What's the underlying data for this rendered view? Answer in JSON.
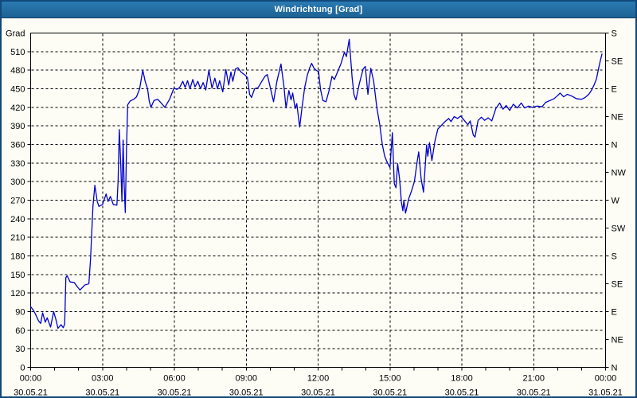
{
  "window": {
    "title": "Windrichtung [Grad]"
  },
  "colors": {
    "titlebar": "#1d6294",
    "window_border": "#10497a",
    "background": "#fdfdf6",
    "plot_background": "#fdfdf6",
    "line": "#0000cc",
    "grid": "#000000",
    "frame": "#000000",
    "text": "#000000"
  },
  "chart_data": {
    "type": "line",
    "title": "Windrichtung [Grad]",
    "ylabel": "Grad",
    "ylim": [
      0,
      540
    ],
    "xlim_hours": [
      0,
      24
    ],
    "grid": {
      "style": "dashed",
      "h_step": 30,
      "v_step_hours": 3
    },
    "y_axis_left": {
      "title": "Grad",
      "tick_step": 30,
      "label_min": 0,
      "label_max": 510
    },
    "y_axis_right": {
      "tick_step": 45,
      "labels": [
        "N",
        "NE",
        "E",
        "SE",
        "S",
        "SW",
        "W",
        "NW",
        "N",
        "NE",
        "E",
        "SE",
        "S"
      ]
    },
    "x_axis": {
      "minor_tick_step_hours": 1,
      "labels": [
        {
          "t": 0,
          "time": "00:00",
          "date": "30.05.21"
        },
        {
          "t": 3,
          "time": "03:00",
          "date": "30.05.21"
        },
        {
          "t": 6,
          "time": "06:00",
          "date": "30.05.21"
        },
        {
          "t": 9,
          "time": "09:00",
          "date": "30.05.21"
        },
        {
          "t": 12,
          "time": "12:00",
          "date": "30.05.21"
        },
        {
          "t": 15,
          "time": "15:00",
          "date": "30.05.21"
        },
        {
          "t": 18,
          "time": "18:00",
          "date": "30.05.21"
        },
        {
          "t": 21,
          "time": "21:00",
          "date": "30.05.21"
        },
        {
          "t": 24,
          "time": "00:00",
          "date": "31.05.21"
        }
      ]
    },
    "series": [
      {
        "name": "Windrichtung",
        "color": "#0000cc",
        "points": [
          [
            0,
            98
          ],
          [
            0.1,
            93
          ],
          [
            0.2,
            86
          ],
          [
            0.33,
            75
          ],
          [
            0.42,
            71
          ],
          [
            0.5,
            88
          ],
          [
            0.61,
            73
          ],
          [
            0.69,
            80
          ],
          [
            0.83,
            65
          ],
          [
            0.96,
            90
          ],
          [
            1.05,
            78
          ],
          [
            1.14,
            63
          ],
          [
            1.27,
            69
          ],
          [
            1.36,
            64
          ],
          [
            1.42,
            70
          ],
          [
            1.47,
            145
          ],
          [
            1.52,
            148
          ],
          [
            1.65,
            138
          ],
          [
            1.82,
            137
          ],
          [
            1.95,
            130
          ],
          [
            2.06,
            125
          ],
          [
            2.26,
            133
          ],
          [
            2.43,
            135
          ],
          [
            2.5,
            175
          ],
          [
            2.6,
            260
          ],
          [
            2.68,
            294
          ],
          [
            2.78,
            268
          ],
          [
            2.85,
            260
          ],
          [
            3.0,
            263
          ],
          [
            3.08,
            272
          ],
          [
            3.15,
            280
          ],
          [
            3.23,
            268
          ],
          [
            3.33,
            276
          ],
          [
            3.45,
            263
          ],
          [
            3.6,
            262
          ],
          [
            3.65,
            300
          ],
          [
            3.7,
            384
          ],
          [
            3.76,
            330
          ],
          [
            3.81,
            268
          ],
          [
            3.86,
            367
          ],
          [
            3.9,
            300
          ],
          [
            3.95,
            250
          ],
          [
            4.0,
            350
          ],
          [
            4.05,
            424
          ],
          [
            4.15,
            430
          ],
          [
            4.3,
            433
          ],
          [
            4.42,
            437
          ],
          [
            4.55,
            450
          ],
          [
            4.68,
            480
          ],
          [
            4.78,
            462
          ],
          [
            4.88,
            450
          ],
          [
            4.95,
            430
          ],
          [
            5.02,
            420
          ],
          [
            5.15,
            431
          ],
          [
            5.3,
            433
          ],
          [
            5.45,
            427
          ],
          [
            5.6,
            420
          ],
          [
            5.8,
            433
          ],
          [
            5.98,
            451
          ],
          [
            6.1,
            449
          ],
          [
            6.22,
            452
          ],
          [
            6.35,
            462
          ],
          [
            6.45,
            452
          ],
          [
            6.55,
            463
          ],
          [
            6.65,
            450
          ],
          [
            6.77,
            465
          ],
          [
            6.86,
            453
          ],
          [
            6.98,
            462
          ],
          [
            7.09,
            450
          ],
          [
            7.2,
            460
          ],
          [
            7.31,
            448
          ],
          [
            7.44,
            480
          ],
          [
            7.57,
            451
          ],
          [
            7.69,
            467
          ],
          [
            7.8,
            450
          ],
          [
            7.89,
            463
          ],
          [
            8.02,
            445
          ],
          [
            8.15,
            481
          ],
          [
            8.27,
            456
          ],
          [
            8.36,
            477
          ],
          [
            8.44,
            462
          ],
          [
            8.55,
            482
          ],
          [
            8.65,
            484
          ],
          [
            8.78,
            477
          ],
          [
            8.95,
            472
          ],
          [
            9.05,
            468
          ],
          [
            9.14,
            441
          ],
          [
            9.22,
            436
          ],
          [
            9.35,
            450
          ],
          [
            9.5,
            452
          ],
          [
            9.65,
            462
          ],
          [
            9.78,
            470
          ],
          [
            9.88,
            473
          ],
          [
            10.05,
            444
          ],
          [
            10.14,
            429
          ],
          [
            10.28,
            462
          ],
          [
            10.45,
            490
          ],
          [
            10.57,
            455
          ],
          [
            10.66,
            419
          ],
          [
            10.78,
            447
          ],
          [
            10.87,
            432
          ],
          [
            10.94,
            443
          ],
          [
            11.04,
            418
          ],
          [
            11.11,
            426
          ],
          [
            11.23,
            388
          ],
          [
            11.33,
            420
          ],
          [
            11.44,
            452
          ],
          [
            11.55,
            472
          ],
          [
            11.65,
            484
          ],
          [
            11.73,
            491
          ],
          [
            11.83,
            483
          ],
          [
            11.95,
            479
          ],
          [
            12.02,
            478
          ],
          [
            12.1,
            449
          ],
          [
            12.2,
            431
          ],
          [
            12.33,
            429
          ],
          [
            12.45,
            446
          ],
          [
            12.58,
            470
          ],
          [
            12.68,
            465
          ],
          [
            12.82,
            478
          ],
          [
            12.95,
            490
          ],
          [
            13.1,
            509
          ],
          [
            13.18,
            502
          ],
          [
            13.3,
            530
          ],
          [
            13.42,
            468
          ],
          [
            13.5,
            440
          ],
          [
            13.58,
            432
          ],
          [
            13.72,
            458
          ],
          [
            13.88,
            482
          ],
          [
            13.97,
            486
          ],
          [
            14.08,
            441
          ],
          [
            14.2,
            483
          ],
          [
            14.32,
            462
          ],
          [
            14.45,
            420
          ],
          [
            14.57,
            393
          ],
          [
            14.68,
            360
          ],
          [
            14.78,
            341
          ],
          [
            14.9,
            330
          ],
          [
            15.0,
            323
          ],
          [
            15.1,
            379
          ],
          [
            15.18,
            297
          ],
          [
            15.25,
            290
          ],
          [
            15.32,
            329
          ],
          [
            15.4,
            305
          ],
          [
            15.48,
            266
          ],
          [
            15.54,
            253
          ],
          [
            15.58,
            270
          ],
          [
            15.65,
            249
          ],
          [
            15.78,
            272
          ],
          [
            15.9,
            285
          ],
          [
            16.02,
            300
          ],
          [
            16.13,
            331
          ],
          [
            16.2,
            348
          ],
          [
            16.3,
            305
          ],
          [
            16.4,
            283
          ],
          [
            16.48,
            330
          ],
          [
            16.53,
            359
          ],
          [
            16.58,
            341
          ],
          [
            16.65,
            363
          ],
          [
            16.75,
            334
          ],
          [
            16.88,
            366
          ],
          [
            17.0,
            385
          ],
          [
            17.15,
            391
          ],
          [
            17.3,
            397
          ],
          [
            17.45,
            402
          ],
          [
            17.55,
            397
          ],
          [
            17.68,
            405
          ],
          [
            17.82,
            402
          ],
          [
            17.95,
            406
          ],
          [
            18.1,
            399
          ],
          [
            18.25,
            392
          ],
          [
            18.35,
            398
          ],
          [
            18.48,
            375
          ],
          [
            18.55,
            372
          ],
          [
            18.68,
            399
          ],
          [
            18.82,
            404
          ],
          [
            18.95,
            399
          ],
          [
            19.1,
            403
          ],
          [
            19.25,
            398
          ],
          [
            19.42,
            418
          ],
          [
            19.58,
            427
          ],
          [
            19.72,
            417
          ],
          [
            19.85,
            423
          ],
          [
            20.0,
            415
          ],
          [
            20.15,
            425
          ],
          [
            20.32,
            419
          ],
          [
            20.48,
            427
          ],
          [
            20.62,
            419
          ],
          [
            20.78,
            422
          ],
          [
            20.95,
            420
          ],
          [
            21.15,
            422
          ],
          [
            21.35,
            421
          ],
          [
            21.5,
            428
          ],
          [
            21.68,
            431
          ],
          [
            21.85,
            434
          ],
          [
            22.0,
            439
          ],
          [
            22.1,
            443
          ],
          [
            22.25,
            437
          ],
          [
            22.4,
            441
          ],
          [
            22.6,
            438
          ],
          [
            22.78,
            434
          ],
          [
            23.0,
            433
          ],
          [
            23.15,
            436
          ],
          [
            23.3,
            441
          ],
          [
            23.42,
            448
          ],
          [
            23.52,
            456
          ],
          [
            23.62,
            466
          ],
          [
            23.7,
            481
          ],
          [
            23.78,
            495
          ],
          [
            23.85,
            506
          ]
        ]
      }
    ]
  }
}
